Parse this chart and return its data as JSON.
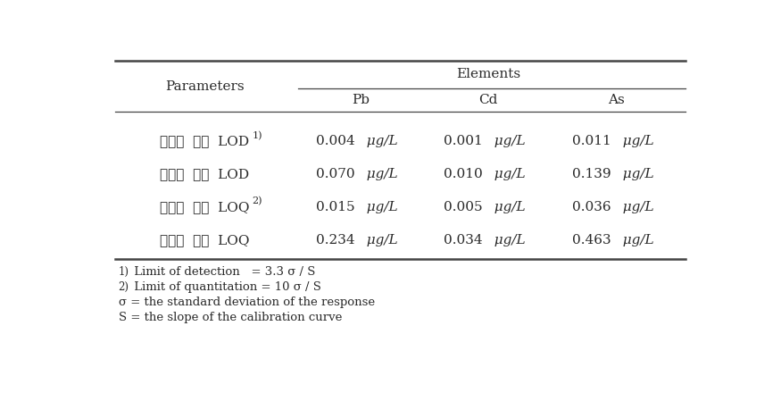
{
  "row_labels_korean": [
    "기기에  대한  LOD",
    "시료에  대한  LOD",
    "기기에  대한  LOQ",
    "시료에  대한  LOQ"
  ],
  "row_superscripts": [
    "1)",
    "",
    "2)",
    ""
  ],
  "pb_nums": [
    "0.004",
    "0.070",
    "0.015",
    "0.234"
  ],
  "cd_nums": [
    "0.001",
    "0.010",
    "0.005",
    "0.034"
  ],
  "as_nums": [
    "0.011",
    "0.139",
    "0.036",
    "0.463"
  ],
  "unit": "μg/L",
  "footnote_prefixes": [
    "1)",
    "2)",
    "σ",
    "S"
  ],
  "footnote_texts": [
    " Limit of detection   = 3.3 σ / S",
    " Limit of quantitation = 10 σ / S",
    " = the standard deviation of the response",
    " = the slope of the calibration curve"
  ],
  "bg_color": "#ffffff",
  "text_color": "#2a2a2a",
  "line_color": "#444444"
}
